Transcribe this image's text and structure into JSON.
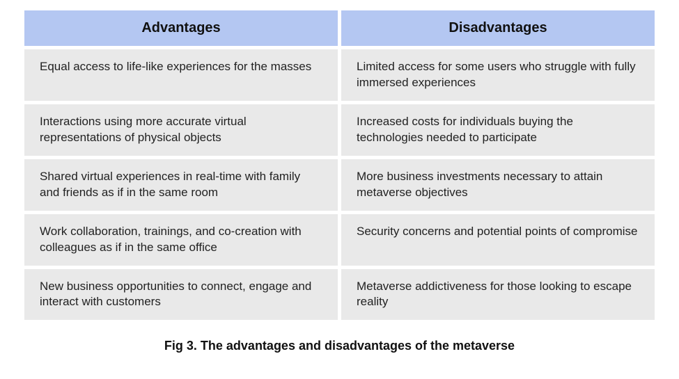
{
  "table": {
    "header_bg": "#b4c7f2",
    "cell_bg": "#e9e9e9",
    "columns": [
      "Advantages",
      "Disadvantages"
    ],
    "rows": [
      [
        "Equal access to life-like experiences for the masses",
        "Limited access for some users who struggle with fully immersed experiences"
      ],
      [
        "Interactions using more accurate virtual representations of physical objects",
        "Increased costs for individuals buying the technologies needed to participate"
      ],
      [
        "Shared virtual experiences in real-time with family and friends as if in the same room",
        "More business investments necessary to attain metaverse objectives"
      ],
      [
        "Work collaboration, trainings, and co-creation with colleagues as if in the same office",
        "Security concerns and potential points of compromise"
      ],
      [
        "New business opportunities to connect, engage and interact with customers",
        "Metaverse addictiveness for those looking to escape reality"
      ]
    ]
  },
  "caption": "Fig 3. The advantages and disadvantages of the metaverse"
}
